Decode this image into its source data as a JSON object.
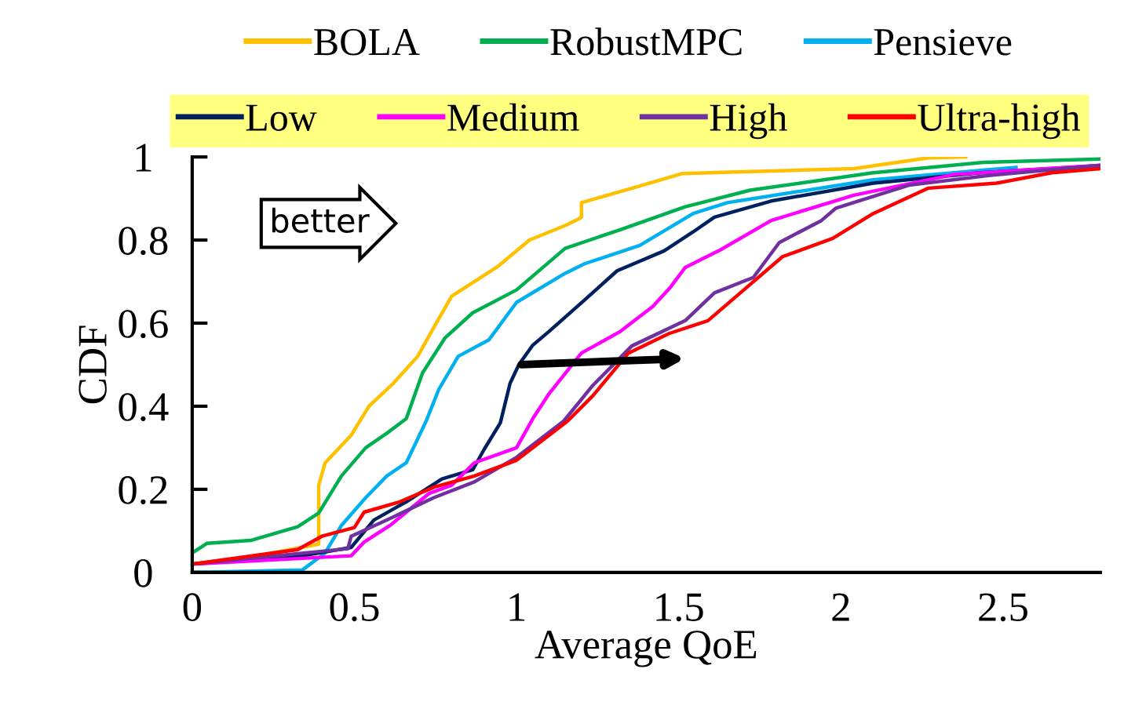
{
  "chart_data": {
    "type": "line",
    "xlabel": "Average QoE",
    "ylabel": "CDF",
    "xlim": [
      0,
      2.8
    ],
    "ylim": [
      0,
      1
    ],
    "xticks": [
      0,
      0.5,
      1,
      1.5,
      2,
      2.5
    ],
    "yticks": [
      0,
      0.2,
      0.4,
      0.6,
      0.8,
      1
    ],
    "grid": false,
    "legend": "top",
    "marker": "none",
    "line_style": "solid",
    "annotations": [
      "better"
    ],
    "series": [
      {
        "name": "BOLA",
        "color": "#ffc000",
        "x": [
          0,
          0.2,
          0.39,
          0.39,
          0.41,
          0.49,
          0.545,
          0.62,
          0.695,
          0.745,
          0.8,
          0.94,
          1.04,
          1.15,
          1.19,
          1.2,
          1.2,
          1.38,
          1.51,
          2.04,
          2.27,
          2.385
        ],
        "values": [
          0.02,
          0.04,
          0.068,
          0.21,
          0.264,
          0.33,
          0.4,
          0.455,
          0.52,
          0.59,
          0.665,
          0.735,
          0.8,
          0.835,
          0.85,
          0.855,
          0.89,
          0.93,
          0.96,
          0.972,
          0.998,
          1.0
        ]
      },
      {
        "name": "RobustMPC",
        "color": "#00b050",
        "x": [
          0,
          0.046,
          0.18,
          0.325,
          0.39,
          0.46,
          0.535,
          0.6,
          0.66,
          0.71,
          0.78,
          0.865,
          1.0,
          1.15,
          1.32,
          1.52,
          1.72,
          2.1,
          2.44,
          2.8
        ],
        "values": [
          0.047,
          0.07,
          0.077,
          0.11,
          0.143,
          0.232,
          0.3,
          0.335,
          0.37,
          0.48,
          0.565,
          0.625,
          0.68,
          0.78,
          0.825,
          0.88,
          0.92,
          0.962,
          0.987,
          0.995
        ]
      },
      {
        "name": "Pensieve",
        "color": "#00b0f0",
        "x": [
          0,
          0.34,
          0.41,
          0.46,
          0.535,
          0.6,
          0.66,
          0.72,
          0.76,
          0.82,
          0.915,
          1.0,
          1.15,
          1.21,
          1.38,
          1.545,
          1.65,
          2.1,
          2.54
        ],
        "values": [
          0.0,
          0.006,
          0.047,
          0.113,
          0.18,
          0.232,
          0.264,
          0.362,
          0.44,
          0.52,
          0.56,
          0.65,
          0.72,
          0.743,
          0.787,
          0.864,
          0.89,
          0.945,
          0.975
        ]
      },
      {
        "name": "Low",
        "color": "#002060",
        "x": [
          0,
          0.34,
          0.49,
          0.56,
          0.66,
          0.77,
          0.865,
          0.9,
          0.95,
          0.98,
          1.007,
          1.05,
          1.1,
          1.21,
          1.31,
          1.455,
          1.545,
          1.61,
          1.785,
          2.1,
          2.43,
          2.8
        ],
        "values": [
          0.02,
          0.04,
          0.06,
          0.126,
          0.17,
          0.225,
          0.247,
          0.296,
          0.36,
          0.455,
          0.5,
          0.547,
          0.58,
          0.656,
          0.726,
          0.774,
          0.82,
          0.855,
          0.894,
          0.937,
          0.962,
          0.979
        ]
      },
      {
        "name": "Medium",
        "color": "#ff00ff",
        "x": [
          0,
          0.49,
          0.53,
          0.61,
          0.73,
          0.8,
          0.87,
          1.0,
          1.05,
          1.1,
          1.2,
          1.32,
          1.42,
          1.475,
          1.52,
          1.63,
          1.785,
          2.04,
          2.35,
          2.8
        ],
        "values": [
          0.02,
          0.04,
          0.073,
          0.113,
          0.19,
          0.21,
          0.264,
          0.3,
          0.37,
          0.43,
          0.528,
          0.58,
          0.64,
          0.687,
          0.734,
          0.777,
          0.847,
          0.908,
          0.958,
          0.98
        ]
      },
      {
        "name": "High",
        "color": "#7030a0",
        "x": [
          0,
          0.48,
          0.49,
          0.6,
          0.745,
          0.87,
          1.0,
          1.145,
          1.235,
          1.355,
          1.52,
          1.61,
          1.73,
          1.81,
          1.94,
          1.985,
          2.21,
          2.45,
          2.8
        ],
        "values": [
          0.02,
          0.057,
          0.087,
          0.126,
          0.18,
          0.218,
          0.277,
          0.364,
          0.45,
          0.545,
          0.606,
          0.673,
          0.71,
          0.794,
          0.847,
          0.877,
          0.932,
          0.955,
          0.98
        ]
      },
      {
        "name": "Ultra-high",
        "color": "#ff0000",
        "x": [
          0,
          0.325,
          0.4,
          0.5,
          0.53,
          0.64,
          0.745,
          0.87,
          1.0,
          1.157,
          1.235,
          1.345,
          1.47,
          1.59,
          1.69,
          1.82,
          1.975,
          2.1,
          2.27,
          2.48,
          2.65,
          2.8
        ],
        "values": [
          0.02,
          0.055,
          0.087,
          0.108,
          0.145,
          0.17,
          0.205,
          0.232,
          0.27,
          0.364,
          0.425,
          0.528,
          0.575,
          0.606,
          0.673,
          0.76,
          0.804,
          0.864,
          0.925,
          0.937,
          0.962,
          0.972
        ]
      }
    ]
  }
}
